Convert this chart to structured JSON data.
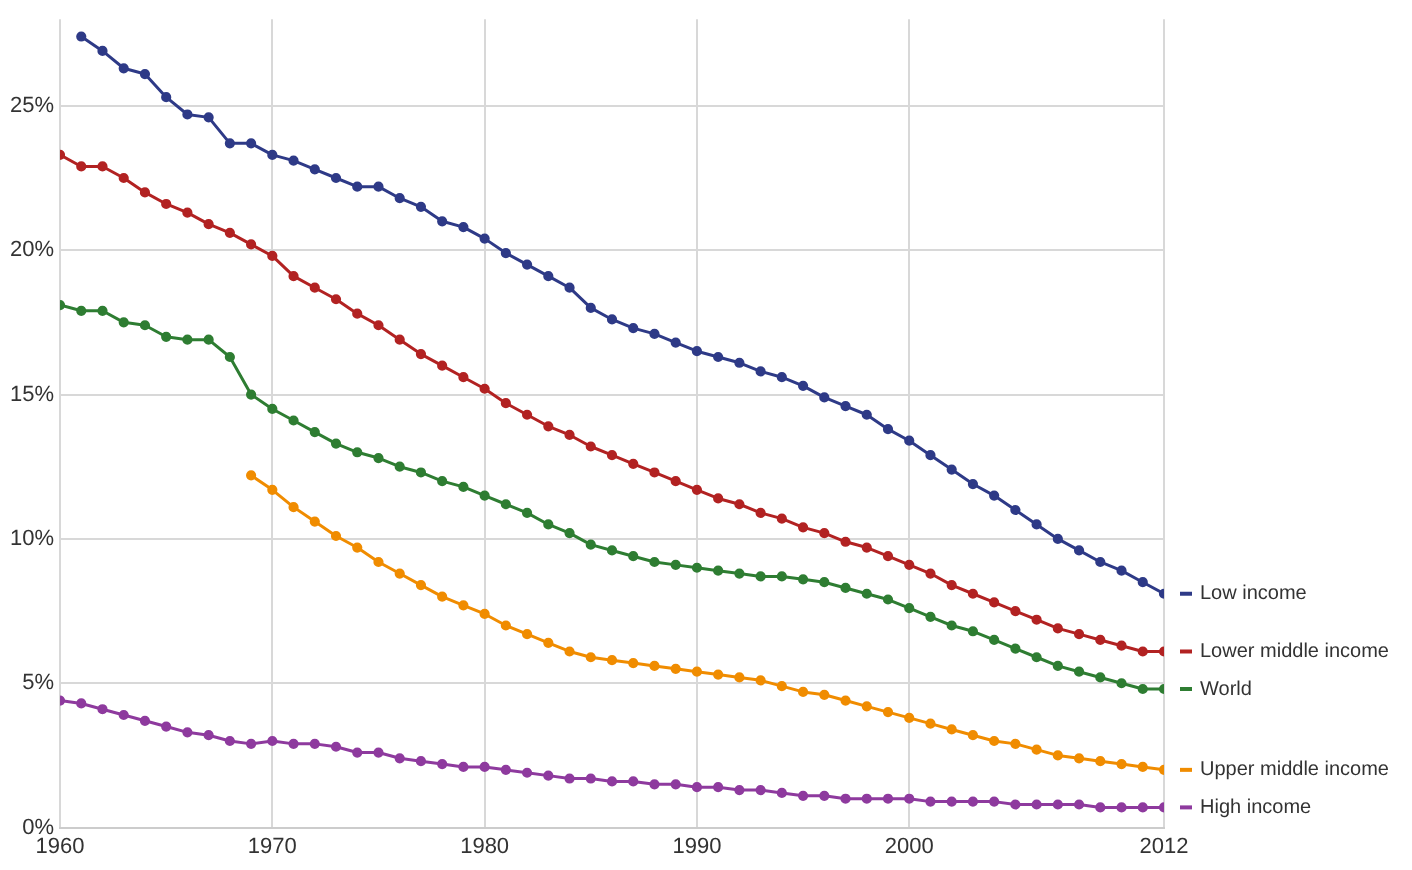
{
  "chart_data": {
    "type": "line",
    "x": [
      1960,
      1961,
      1962,
      1963,
      1964,
      1965,
      1966,
      1967,
      1968,
      1969,
      1970,
      1971,
      1972,
      1973,
      1974,
      1975,
      1976,
      1977,
      1978,
      1979,
      1980,
      1981,
      1982,
      1983,
      1984,
      1985,
      1986,
      1987,
      1988,
      1989,
      1990,
      1991,
      1992,
      1993,
      1994,
      1995,
      1996,
      1997,
      1998,
      1999,
      2000,
      2001,
      2002,
      2003,
      2004,
      2005,
      2006,
      2007,
      2008,
      2009,
      2010,
      2011,
      2012
    ],
    "series": [
      {
        "name": "Low income",
        "color": "#2e3a87",
        "values": [
          null,
          27.4,
          26.9,
          26.3,
          26.1,
          25.3,
          24.7,
          24.6,
          23.7,
          23.7,
          23.3,
          23.1,
          22.8,
          22.5,
          22.2,
          22.2,
          21.8,
          21.5,
          21.0,
          20.8,
          20.4,
          19.9,
          19.5,
          19.1,
          18.7,
          18.0,
          17.6,
          17.3,
          17.1,
          16.8,
          16.5,
          16.3,
          16.1,
          15.8,
          15.6,
          15.3,
          14.9,
          14.6,
          14.3,
          13.8,
          13.4,
          12.9,
          12.4,
          11.9,
          11.5,
          11.0,
          10.5,
          10.0,
          9.6,
          9.2,
          8.9,
          8.5,
          8.1
        ]
      },
      {
        "name": "Lower middle income",
        "color": "#b22222",
        "values": [
          23.3,
          22.9,
          22.9,
          22.5,
          22.0,
          21.6,
          21.3,
          20.9,
          20.6,
          20.2,
          19.8,
          19.1,
          18.7,
          18.3,
          17.8,
          17.4,
          16.9,
          16.4,
          16.0,
          15.6,
          15.2,
          14.7,
          14.3,
          13.9,
          13.6,
          13.2,
          12.9,
          12.6,
          12.3,
          12.0,
          11.7,
          11.4,
          11.2,
          10.9,
          10.7,
          10.4,
          10.2,
          9.9,
          9.7,
          9.4,
          9.1,
          8.8,
          8.4,
          8.1,
          7.8,
          7.5,
          7.2,
          6.9,
          6.7,
          6.5,
          6.3,
          6.1,
          6.1
        ]
      },
      {
        "name": "World",
        "color": "#2e7d32",
        "values": [
          18.1,
          17.9,
          17.9,
          17.5,
          17.4,
          17.0,
          16.9,
          16.9,
          16.3,
          15.0,
          14.5,
          14.1,
          13.7,
          13.3,
          13.0,
          12.8,
          12.5,
          12.3,
          12.0,
          11.8,
          11.5,
          11.2,
          10.9,
          10.5,
          10.2,
          9.8,
          9.6,
          9.4,
          9.2,
          9.1,
          9.0,
          8.9,
          8.8,
          8.7,
          8.7,
          8.6,
          8.5,
          8.3,
          8.1,
          7.9,
          7.6,
          7.3,
          7.0,
          6.8,
          6.5,
          6.2,
          5.9,
          5.6,
          5.4,
          5.2,
          5.0,
          4.8,
          4.8
        ]
      },
      {
        "name": "Upper middle income",
        "color": "#f08c00",
        "values": [
          null,
          null,
          null,
          null,
          null,
          null,
          null,
          null,
          null,
          12.2,
          11.7,
          11.1,
          10.6,
          10.1,
          9.7,
          9.2,
          8.8,
          8.4,
          8.0,
          7.7,
          7.4,
          7.0,
          6.7,
          6.4,
          6.1,
          5.9,
          5.8,
          5.7,
          5.6,
          5.5,
          5.4,
          5.3,
          5.2,
          5.1,
          4.9,
          4.7,
          4.6,
          4.4,
          4.2,
          4.0,
          3.8,
          3.6,
          3.4,
          3.2,
          3.0,
          2.9,
          2.7,
          2.5,
          2.4,
          2.3,
          2.2,
          2.1,
          2.0
        ]
      },
      {
        "name": "High income",
        "color": "#8e3a9e",
        "values": [
          4.4,
          4.3,
          4.1,
          3.9,
          3.7,
          3.5,
          3.3,
          3.2,
          3.0,
          2.9,
          3.0,
          2.9,
          2.9,
          2.8,
          2.6,
          2.6,
          2.4,
          2.3,
          2.2,
          2.1,
          2.1,
          2.0,
          1.9,
          1.8,
          1.7,
          1.7,
          1.6,
          1.6,
          1.5,
          1.5,
          1.4,
          1.4,
          1.3,
          1.3,
          1.2,
          1.1,
          1.1,
          1.0,
          1.0,
          1.0,
          1.0,
          0.9,
          0.9,
          0.9,
          0.9,
          0.8,
          0.8,
          0.8,
          0.8,
          0.7,
          0.7,
          0.7,
          0.7
        ]
      }
    ],
    "xlim": [
      1960,
      2012
    ],
    "xticks": [
      1960,
      1970,
      1980,
      1990,
      2000,
      2012
    ],
    "ylim": [
      0,
      28
    ],
    "yticks": [
      {
        "value": 0,
        "label": "0%"
      },
      {
        "value": 5,
        "label": "5%"
      },
      {
        "value": 10,
        "label": "10%"
      },
      {
        "value": 15,
        "label": "15%"
      },
      {
        "value": 20,
        "label": "20%"
      },
      {
        "value": 25,
        "label": "25%"
      }
    ],
    "grid": true,
    "legend": "right",
    "marker": "circle",
    "line_style": "solid"
  }
}
